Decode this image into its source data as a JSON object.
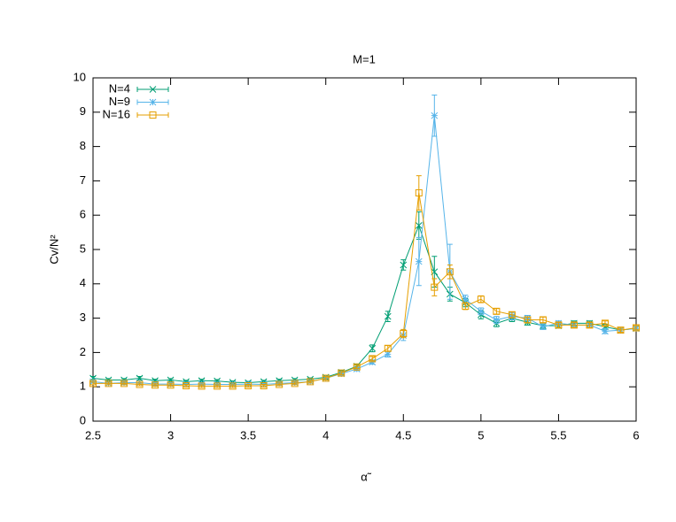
{
  "chart_data": {
    "type": "line",
    "title": "M=1",
    "x_label": "α̃",
    "y_label": "Cv/N²",
    "x": [
      2.5,
      2.6,
      2.7,
      2.8,
      2.9,
      3.0,
      3.1,
      3.2,
      3.3,
      3.4,
      3.5,
      3.6,
      3.7,
      3.8,
      3.9,
      4.0,
      4.1,
      4.2,
      4.3,
      4.4,
      4.5,
      4.6,
      4.7,
      4.8,
      4.9,
      5.0,
      5.1,
      5.2,
      5.3,
      5.4,
      5.5,
      5.6,
      5.7,
      5.8,
      5.9,
      6.0
    ],
    "series": [
      {
        "name": "N=4",
        "color": "#009e73",
        "marker": "x",
        "values": [
          1.25,
          1.2,
          1.2,
          1.25,
          1.18,
          1.2,
          1.15,
          1.18,
          1.17,
          1.13,
          1.12,
          1.15,
          1.18,
          1.2,
          1.22,
          1.28,
          1.42,
          1.6,
          2.12,
          3.05,
          4.55,
          5.7,
          4.35,
          3.7,
          3.45,
          3.1,
          2.85,
          3.0,
          2.88,
          2.78,
          2.78,
          2.85,
          2.85,
          2.75,
          2.65,
          2.7
        ],
        "errors": [
          0.05,
          0.04,
          0.04,
          0.05,
          0.04,
          0.04,
          0.04,
          0.04,
          0.04,
          0.04,
          0.04,
          0.04,
          0.04,
          0.04,
          0.04,
          0.05,
          0.05,
          0.06,
          0.1,
          0.15,
          0.15,
          0.4,
          0.45,
          0.2,
          0.12,
          0.12,
          0.1,
          0.1,
          0.08,
          0.08,
          0.07,
          0.07,
          0.07,
          0.07,
          0.06,
          0.06
        ]
      },
      {
        "name": "N=9",
        "color": "#56b4e9",
        "marker": "star",
        "values": [
          1.15,
          1.1,
          1.12,
          1.12,
          1.08,
          1.08,
          1.07,
          1.08,
          1.07,
          1.07,
          1.08,
          1.07,
          1.1,
          1.12,
          1.15,
          1.25,
          1.38,
          1.52,
          1.72,
          1.95,
          2.5,
          4.65,
          8.9,
          4.35,
          3.55,
          3.2,
          2.95,
          3.05,
          3.0,
          2.75,
          2.85,
          2.8,
          2.8,
          2.62,
          2.65,
          2.7
        ],
        "errors": [
          0.04,
          0.04,
          0.04,
          0.04,
          0.04,
          0.04,
          0.04,
          0.04,
          0.04,
          0.04,
          0.04,
          0.04,
          0.04,
          0.04,
          0.04,
          0.05,
          0.05,
          0.05,
          0.06,
          0.08,
          0.15,
          0.7,
          0.6,
          0.8,
          0.12,
          0.1,
          0.1,
          0.1,
          0.08,
          0.08,
          0.07,
          0.07,
          0.07,
          0.07,
          0.06,
          0.06
        ]
      },
      {
        "name": "N=16",
        "color": "#e69f00",
        "marker": "square",
        "values": [
          1.1,
          1.1,
          1.1,
          1.07,
          1.05,
          1.05,
          1.03,
          1.02,
          1.02,
          1.02,
          1.03,
          1.03,
          1.07,
          1.1,
          1.15,
          1.25,
          1.4,
          1.58,
          1.82,
          2.12,
          2.55,
          6.65,
          3.9,
          4.35,
          3.35,
          3.55,
          3.2,
          3.1,
          2.95,
          2.95,
          2.8,
          2.8,
          2.8,
          2.85,
          2.65,
          2.72
        ],
        "errors": [
          0.04,
          0.04,
          0.04,
          0.04,
          0.04,
          0.04,
          0.04,
          0.04,
          0.04,
          0.04,
          0.04,
          0.04,
          0.04,
          0.04,
          0.04,
          0.05,
          0.05,
          0.05,
          0.06,
          0.08,
          0.12,
          0.5,
          0.25,
          0.2,
          0.1,
          0.1,
          0.08,
          0.08,
          0.08,
          0.08,
          0.07,
          0.07,
          0.07,
          0.07,
          0.06,
          0.06
        ]
      }
    ],
    "xlim": [
      2.5,
      6
    ],
    "xticks": [
      2.5,
      3,
      3.5,
      4,
      4.5,
      5,
      5.5,
      6
    ],
    "ylim": [
      0,
      10
    ],
    "yticks": [
      0,
      1,
      2,
      3,
      4,
      5,
      6,
      7,
      8,
      9,
      10
    ],
    "legend": "top-left"
  }
}
